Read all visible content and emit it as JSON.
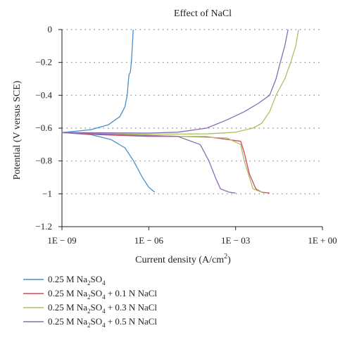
{
  "chart_data": {
    "type": "line",
    "title": "Effect of NaCl",
    "xlabel": "Current density (A/cm²)",
    "ylabel": "Potential (V versus SCE)",
    "x_scale": "log",
    "xlim": [
      1e-09,
      1
    ],
    "ylim": [
      -1.2,
      0
    ],
    "x_ticks": [
      {
        "value": 1e-09,
        "label": "1E − 09"
      },
      {
        "value": 1e-06,
        "label": "1E − 06"
      },
      {
        "value": 0.001,
        "label": "1E − 03"
      },
      {
        "value": 1,
        "label": "1E + 00"
      }
    ],
    "y_ticks": [
      {
        "value": 0,
        "label": "0"
      },
      {
        "value": -0.2,
        "label": "−0.2"
      },
      {
        "value": -0.4,
        "label": "−0.4"
      },
      {
        "value": -0.6,
        "label": "−0.6"
      },
      {
        "value": -0.8,
        "label": "−0.8"
      },
      {
        "value": -1.0,
        "label": "−1"
      },
      {
        "value": -1.2,
        "label": "−1.2"
      }
    ],
    "grid": "horizontal-dotted",
    "legend_position": "bottom-left",
    "series": [
      {
        "name": "0.25 M Na₂SO₄",
        "color": "#4a8fc9",
        "points": [
          [
            2.9e-07,
            0.0
          ],
          [
            2.7e-07,
            -0.1
          ],
          [
            2.5e-07,
            -0.2
          ],
          [
            2.3e-07,
            -0.26
          ],
          [
            2.1e-07,
            -0.27
          ],
          [
            2e-07,
            -0.3
          ],
          [
            1.8e-07,
            -0.4
          ],
          [
            1.5e-07,
            -0.47
          ],
          [
            1e-07,
            -0.53
          ],
          [
            4e-08,
            -0.58
          ],
          [
            1e-08,
            -0.61
          ],
          [
            1e-09,
            -0.627
          ],
          [
            1e-08,
            -0.64
          ],
          [
            5e-08,
            -0.67
          ],
          [
            1.5e-07,
            -0.72
          ],
          [
            3e-07,
            -0.8
          ],
          [
            6e-07,
            -0.9
          ],
          [
            1e-06,
            -0.96
          ],
          [
            1.6e-06,
            -0.99
          ]
        ]
      },
      {
        "name": "0.25 M Na₂SO₄ + 0.1 N NaCl",
        "color": "#d2495b",
        "points": [
          [
            1e-09,
            -0.627
          ],
          [
            2e-08,
            -0.64
          ],
          [
            1e-06,
            -0.65
          ],
          [
            0.0001,
            -0.652
          ],
          [
            0.0015,
            -0.68
          ],
          [
            0.002,
            -0.75
          ],
          [
            0.003,
            -0.88
          ],
          [
            0.005,
            -0.97
          ],
          [
            0.008,
            -0.99
          ],
          [
            0.015,
            -0.995
          ]
        ]
      },
      {
        "name": "0.25 M Na₂SO₄ + 0.3 N NaCl",
        "color": "#a8c262",
        "points": [
          [
            0.15,
            0.0
          ],
          [
            0.12,
            -0.1
          ],
          [
            0.08,
            -0.2
          ],
          [
            0.05,
            -0.3
          ],
          [
            0.025,
            -0.4
          ],
          [
            0.015,
            -0.5
          ],
          [
            0.008,
            -0.57
          ],
          [
            0.004,
            -0.6
          ],
          [
            0.001,
            -0.625
          ],
          [
            0.0001,
            -0.635
          ],
          [
            1e-06,
            -0.637
          ],
          [
            1e-09,
            -0.627
          ],
          [
            1e-07,
            -0.64
          ],
          [
            1e-05,
            -0.65
          ],
          [
            0.0005,
            -0.66
          ],
          [
            0.0015,
            -0.7
          ],
          [
            0.002,
            -0.8
          ],
          [
            0.003,
            -0.9
          ],
          [
            0.004,
            -0.97
          ],
          [
            0.008,
            -0.99
          ]
        ]
      },
      {
        "name": "0.25 M Na₂SO₄ + 0.5 N NaCl",
        "color": "#8a6bb1",
        "points": [
          [
            0.065,
            0.0
          ],
          [
            0.05,
            -0.1
          ],
          [
            0.035,
            -0.2
          ],
          [
            0.025,
            -0.3
          ],
          [
            0.015,
            -0.4
          ],
          [
            0.006,
            -0.45
          ],
          [
            0.002,
            -0.5
          ],
          [
            0.0005,
            -0.55
          ],
          [
            0.0001,
            -0.6
          ],
          [
            1e-05,
            -0.625
          ],
          [
            1e-06,
            -0.63
          ],
          [
            1e-09,
            -0.627
          ],
          [
            1e-07,
            -0.64
          ],
          [
            1e-05,
            -0.65
          ],
          [
            6e-05,
            -0.7
          ],
          [
            0.00012,
            -0.8
          ],
          [
            0.0002,
            -0.9
          ],
          [
            0.0003,
            -0.97
          ],
          [
            0.0006,
            -0.99
          ],
          [
            0.001,
            -0.995
          ]
        ]
      }
    ]
  },
  "legend": {
    "items": [
      {
        "base": "0.25 M Na",
        "sub": "2",
        "rest": "SO",
        "sub2": "4",
        "extra": ""
      },
      {
        "base": "0.25 M Na",
        "sub": "2",
        "rest": "SO",
        "sub2": "4",
        "extra": " + 0.1 N NaCl"
      },
      {
        "base": "0.25 M Na",
        "sub": "2",
        "rest": "SO",
        "sub2": "4",
        "extra": " + 0.3 N NaCl"
      },
      {
        "base": "0.25 M Na",
        "sub": "2",
        "rest": "SO",
        "sub2": "4",
        "extra": " + 0.5 N NaCl"
      }
    ]
  },
  "xlabel_parts": {
    "main": "Current density (A/cm",
    "sup": "2",
    "end": ")"
  }
}
